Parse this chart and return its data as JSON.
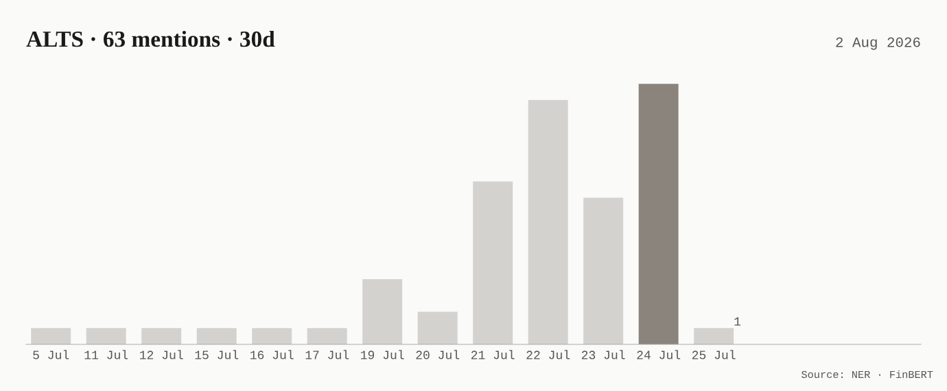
{
  "chart_data": {
    "type": "bar",
    "title": "ALTS · 63 mentions · 30d",
    "categories": [
      "5 Jul",
      "11 Jul",
      "12 Jul",
      "15 Jul",
      "16 Jul",
      "17 Jul",
      "19 Jul",
      "20 Jul",
      "21 Jul",
      "22 Jul",
      "23 Jul",
      "24 Jul",
      "25 Jul"
    ],
    "values": [
      1,
      1,
      1,
      1,
      1,
      1,
      4,
      2,
      10,
      15,
      9,
      16,
      1
    ],
    "colors": [
      "#d3d2cf",
      "#d3d2cf",
      "#d3d2cf",
      "#d3d2cf",
      "#d3d2cf",
      "#d3d2cf",
      "#d3d2cf",
      "#d3d2cf",
      "#d3d2cf",
      "#d3d2cf",
      "#d3d2cf",
      "#8a847c",
      "#d3d2cf"
    ],
    "value_labels": [
      null,
      null,
      null,
      null,
      null,
      null,
      null,
      null,
      null,
      null,
      null,
      null,
      "1"
    ],
    "annotations": [
      "2 Aug 2026",
      "Source: NER · FinBERT"
    ],
    "grid": false,
    "legend": false
  }
}
